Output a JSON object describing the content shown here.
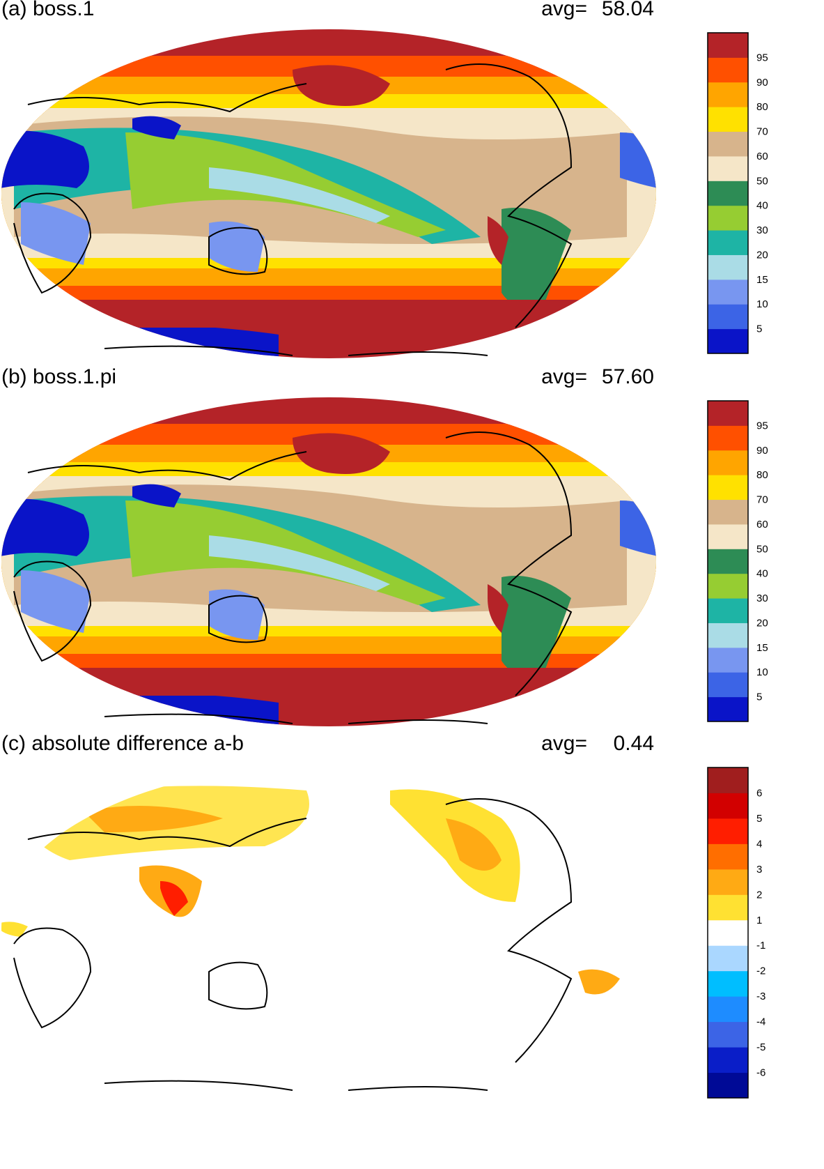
{
  "panels": [
    {
      "id": "a",
      "title": "(a) boss.1",
      "avg_label": "avg=",
      "avg_value": "58.04",
      "colorbar": {
        "colors": [
          "#0a14c8",
          "#3c64e6",
          "#7896f0",
          "#aadce6",
          "#1eb4a5",
          "#96cd32",
          "#2d8c55",
          "#f5e6c8",
          "#d7b48c",
          "#ffe100",
          "#ffa500",
          "#ff5000",
          "#b42328"
        ],
        "labels": [
          "5",
          "10",
          "15",
          "20",
          "30",
          "40",
          "50",
          "60",
          "70",
          "80",
          "90",
          "95"
        ]
      }
    },
    {
      "id": "b",
      "title": "(b) boss.1.pi",
      "avg_label": "avg=",
      "avg_value": "57.60",
      "colorbar": {
        "colors": [
          "#0a14c8",
          "#3c64e6",
          "#7896f0",
          "#aadce6",
          "#1eb4a5",
          "#96cd32",
          "#2d8c55",
          "#f5e6c8",
          "#d7b48c",
          "#ffe100",
          "#ffa500",
          "#ff5000",
          "#b42328"
        ],
        "labels": [
          "5",
          "10",
          "15",
          "20",
          "30",
          "40",
          "50",
          "60",
          "70",
          "80",
          "90",
          "95"
        ]
      }
    },
    {
      "id": "c",
      "title": "(c) absolute difference a-b",
      "avg_label": "avg=",
      "avg_value": "0.44",
      "colorbar": {
        "colors": [
          "#000a96",
          "#0a1ec8",
          "#3c64e6",
          "#1e8cff",
          "#00beff",
          "#aad7ff",
          "#ffffff",
          "#ffe132",
          "#ffaa14",
          "#ff6e00",
          "#ff1e00",
          "#d20000",
          "#a01e1e"
        ],
        "labels": [
          "-6",
          "-5",
          "-4",
          "-3",
          "-2",
          "-1",
          "1",
          "2",
          "3",
          "4",
          "5",
          "6"
        ]
      }
    }
  ]
}
